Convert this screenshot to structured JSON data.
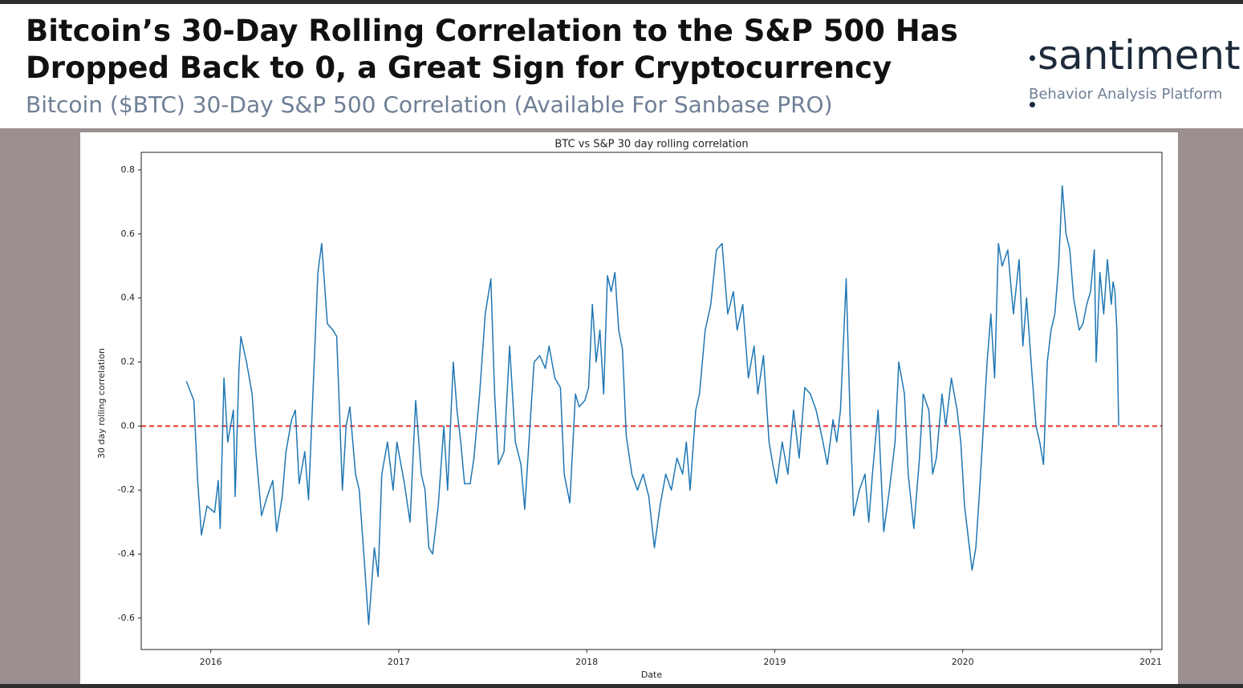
{
  "header": {
    "title": [
      "Bitcoin’s 30-Day Rolling Correlation to the S&P 500 Has",
      "Dropped Back to 0, a Great Sign for Cryptocurrency"
    ],
    "subtitle": "Bitcoin ($BTC) 30-Day S&P 500 Correlation (Available For Sanbase PRO)",
    "logo": "santiment",
    "tagline": "Behavior Analysis Platform"
  },
  "chart_data": {
    "type": "line",
    "title": "BTC vs S&P 30 day rolling correlation",
    "xlabel": "Date",
    "ylabel": "30 day rolling correlation",
    "color": "#1f77b4",
    "x": [
      2015.87,
      2015.91,
      2015.93,
      2015.95,
      2015.98,
      2016.02,
      2016.04,
      2016.05,
      2016.07,
      2016.09,
      2016.12,
      2016.13,
      2016.15,
      2016.16,
      2016.19,
      2016.22,
      2016.24,
      2016.27,
      2016.3,
      2016.33,
      2016.35,
      2016.38,
      2016.4,
      2016.43,
      2016.45,
      2016.47,
      2016.5,
      2016.52,
      2016.57,
      2016.59,
      2016.62,
      2016.65,
      2016.67,
      2016.7,
      2016.72,
      2016.74,
      2016.77,
      2016.79,
      2016.82,
      2016.84,
      2016.87,
      2016.89,
      2016.91,
      2016.94,
      2016.97,
      2016.99,
      2017.03,
      2017.06,
      2017.09,
      2017.12,
      2017.14,
      2017.16,
      2017.18,
      2017.21,
      2017.24,
      2017.26,
      2017.29,
      2017.31,
      2017.33,
      2017.35,
      2017.38,
      2017.4,
      2017.43,
      2017.46,
      2017.49,
      2017.51,
      2017.53,
      2017.56,
      2017.59,
      2017.62,
      2017.65,
      2017.67,
      2017.7,
      2017.72,
      2017.75,
      2017.78,
      2017.8,
      2017.83,
      2017.86,
      2017.88,
      2017.91,
      2017.94,
      2017.96,
      2017.99,
      2018.01,
      2018.03,
      2018.05,
      2018.07,
      2018.09,
      2018.11,
      2018.13,
      2018.15,
      2018.17,
      2018.19,
      2018.21,
      2018.24,
      2018.27,
      2018.3,
      2018.33,
      2018.36,
      2018.39,
      2018.42,
      2018.45,
      2018.48,
      2018.51,
      2018.53,
      2018.55,
      2018.58,
      2018.6,
      2018.63,
      2018.66,
      2018.69,
      2018.72,
      2018.75,
      2018.78,
      2018.8,
      2018.83,
      2018.86,
      2018.89,
      2018.91,
      2018.94,
      2018.97,
      2018.99,
      2019.01,
      2019.04,
      2019.07,
      2019.1,
      2019.13,
      2019.16,
      2019.19,
      2019.22,
      2019.25,
      2019.28,
      2019.31,
      2019.33,
      2019.35,
      2019.38,
      2019.4,
      2019.42,
      2019.45,
      2019.48,
      2019.5,
      2019.52,
      2019.55,
      2019.58,
      2019.61,
      2019.64,
      2019.66,
      2019.69,
      2019.71,
      2019.74,
      2019.77,
      2019.79,
      2019.82,
      2019.84,
      2019.86,
      2019.89,
      2019.91,
      2019.94,
      2019.97,
      2019.99,
      2020.01,
      2020.03,
      2020.05,
      2020.07,
      2020.09,
      2020.11,
      2020.13,
      2020.15,
      2020.17,
      2020.19,
      2020.21,
      2020.24,
      2020.27,
      2020.3,
      2020.32,
      2020.34,
      2020.37,
      2020.39,
      2020.41,
      2020.43,
      2020.45,
      2020.47,
      2020.49,
      2020.51,
      2020.53,
      2020.55,
      2020.57,
      2020.59,
      2020.62,
      2020.64,
      2020.66,
      2020.68,
      2020.7,
      2020.71,
      2020.73,
      2020.75,
      2020.77,
      2020.79,
      2020.8,
      2020.81,
      2020.82,
      2020.83
    ],
    "values": [
      0.14,
      0.08,
      -0.17,
      -0.34,
      -0.25,
      -0.27,
      -0.17,
      -0.32,
      0.15,
      -0.05,
      0.05,
      -0.22,
      0.18,
      0.28,
      0.2,
      0.1,
      -0.08,
      -0.28,
      -0.22,
      -0.17,
      -0.33,
      -0.22,
      -0.08,
      0.02,
      0.05,
      -0.18,
      -0.08,
      -0.23,
      0.48,
      0.57,
      0.32,
      0.3,
      0.28,
      -0.2,
      0.0,
      0.06,
      -0.15,
      -0.2,
      -0.45,
      -0.62,
      -0.38,
      -0.47,
      -0.15,
      -0.05,
      -0.2,
      -0.05,
      -0.18,
      -0.3,
      0.08,
      -0.15,
      -0.2,
      -0.38,
      -0.4,
      -0.25,
      0.0,
      -0.2,
      0.2,
      0.05,
      -0.05,
      -0.18,
      -0.18,
      -0.1,
      0.1,
      0.35,
      0.46,
      0.1,
      -0.12,
      -0.08,
      0.25,
      -0.05,
      -0.12,
      -0.26,
      0.02,
      0.2,
      0.22,
      0.18,
      0.25,
      0.15,
      0.12,
      -0.15,
      -0.24,
      0.1,
      0.06,
      0.08,
      0.12,
      0.38,
      0.2,
      0.3,
      0.1,
      0.47,
      0.42,
      0.48,
      0.3,
      0.24,
      -0.03,
      -0.15,
      -0.2,
      -0.15,
      -0.22,
      -0.38,
      -0.25,
      -0.15,
      -0.2,
      -0.1,
      -0.15,
      -0.05,
      -0.2,
      0.05,
      0.1,
      0.3,
      0.38,
      0.55,
      0.57,
      0.35,
      0.42,
      0.3,
      0.38,
      0.15,
      0.25,
      0.1,
      0.22,
      -0.05,
      -0.12,
      -0.18,
      -0.05,
      -0.15,
      0.05,
      -0.1,
      0.12,
      0.1,
      0.05,
      -0.03,
      -0.12,
      0.02,
      -0.05,
      0.05,
      0.46,
      0.05,
      -0.28,
      -0.2,
      -0.15,
      -0.3,
      -0.15,
      0.05,
      -0.33,
      -0.2,
      -0.05,
      0.2,
      0.1,
      -0.15,
      -0.32,
      -0.1,
      0.1,
      0.05,
      -0.15,
      -0.1,
      0.1,
      0.0,
      0.15,
      0.05,
      -0.05,
      -0.25,
      -0.35,
      -0.45,
      -0.38,
      -0.2,
      0.0,
      0.2,
      0.35,
      0.15,
      0.57,
      0.5,
      0.55,
      0.35,
      0.52,
      0.25,
      0.4,
      0.15,
      0.0,
      -0.05,
      -0.12,
      0.2,
      0.3,
      0.35,
      0.5,
      0.75,
      0.6,
      0.55,
      0.4,
      0.3,
      0.32,
      0.38,
      0.42,
      0.55,
      0.2,
      0.48,
      0.35,
      0.52,
      0.38,
      0.45,
      0.42,
      0.3,
      0.0
    ],
    "xlim": [
      2015.63,
      2021.06
    ],
    "xticks": [
      2016,
      2017,
      2018,
      2019,
      2020,
      2021
    ],
    "ylim": [
      -0.698,
      0.855
    ],
    "yticks": [
      -0.6,
      -0.4,
      -0.2,
      {
        "value": 0,
        "label": "0.0"
      },
      0.2,
      0.4,
      0.6,
      0.8
    ],
    "hlines": [
      {
        "value": 0,
        "color": "#e8302c",
        "dashed": true
      }
    ]
  }
}
